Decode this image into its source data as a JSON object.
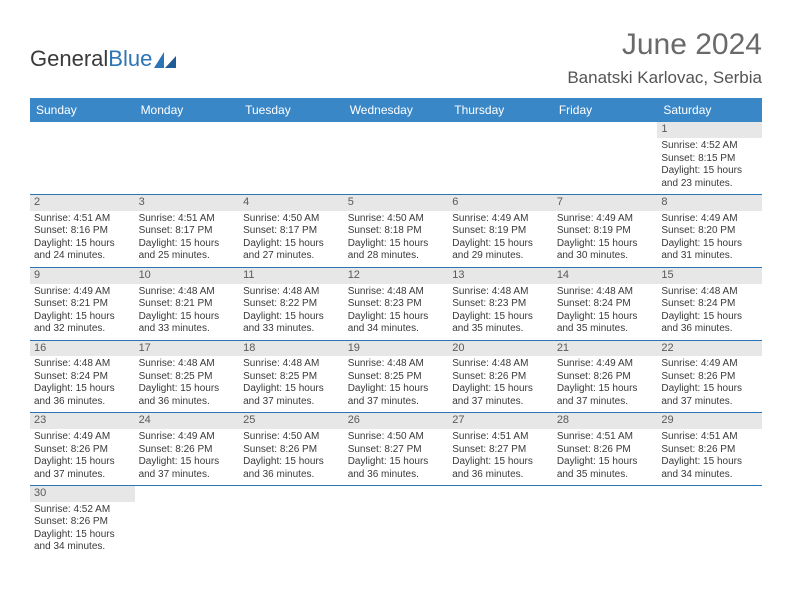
{
  "brand": {
    "part1": "General",
    "part2": "Blue"
  },
  "title": "June 2024",
  "location": "Banatski Karlovac, Serbia",
  "colors": {
    "header_bg": "#3a87c8",
    "header_fg": "#ffffff",
    "grid_line": "#2d74b5",
    "daynum_bg": "#e7e7e7",
    "text": "#3a3a3a",
    "title": "#6a6a6a"
  },
  "weekdays": [
    "Sunday",
    "Monday",
    "Tuesday",
    "Wednesday",
    "Thursday",
    "Friday",
    "Saturday"
  ],
  "weeks": [
    [
      null,
      null,
      null,
      null,
      null,
      null,
      {
        "n": "1",
        "sr": "Sunrise: 4:52 AM",
        "ss": "Sunset: 8:15 PM",
        "d1": "Daylight: 15 hours",
        "d2": "and 23 minutes."
      }
    ],
    [
      {
        "n": "2",
        "sr": "Sunrise: 4:51 AM",
        "ss": "Sunset: 8:16 PM",
        "d1": "Daylight: 15 hours",
        "d2": "and 24 minutes."
      },
      {
        "n": "3",
        "sr": "Sunrise: 4:51 AM",
        "ss": "Sunset: 8:17 PM",
        "d1": "Daylight: 15 hours",
        "d2": "and 25 minutes."
      },
      {
        "n": "4",
        "sr": "Sunrise: 4:50 AM",
        "ss": "Sunset: 8:17 PM",
        "d1": "Daylight: 15 hours",
        "d2": "and 27 minutes."
      },
      {
        "n": "5",
        "sr": "Sunrise: 4:50 AM",
        "ss": "Sunset: 8:18 PM",
        "d1": "Daylight: 15 hours",
        "d2": "and 28 minutes."
      },
      {
        "n": "6",
        "sr": "Sunrise: 4:49 AM",
        "ss": "Sunset: 8:19 PM",
        "d1": "Daylight: 15 hours",
        "d2": "and 29 minutes."
      },
      {
        "n": "7",
        "sr": "Sunrise: 4:49 AM",
        "ss": "Sunset: 8:19 PM",
        "d1": "Daylight: 15 hours",
        "d2": "and 30 minutes."
      },
      {
        "n": "8",
        "sr": "Sunrise: 4:49 AM",
        "ss": "Sunset: 8:20 PM",
        "d1": "Daylight: 15 hours",
        "d2": "and 31 minutes."
      }
    ],
    [
      {
        "n": "9",
        "sr": "Sunrise: 4:49 AM",
        "ss": "Sunset: 8:21 PM",
        "d1": "Daylight: 15 hours",
        "d2": "and 32 minutes."
      },
      {
        "n": "10",
        "sr": "Sunrise: 4:48 AM",
        "ss": "Sunset: 8:21 PM",
        "d1": "Daylight: 15 hours",
        "d2": "and 33 minutes."
      },
      {
        "n": "11",
        "sr": "Sunrise: 4:48 AM",
        "ss": "Sunset: 8:22 PM",
        "d1": "Daylight: 15 hours",
        "d2": "and 33 minutes."
      },
      {
        "n": "12",
        "sr": "Sunrise: 4:48 AM",
        "ss": "Sunset: 8:23 PM",
        "d1": "Daylight: 15 hours",
        "d2": "and 34 minutes."
      },
      {
        "n": "13",
        "sr": "Sunrise: 4:48 AM",
        "ss": "Sunset: 8:23 PM",
        "d1": "Daylight: 15 hours",
        "d2": "and 35 minutes."
      },
      {
        "n": "14",
        "sr": "Sunrise: 4:48 AM",
        "ss": "Sunset: 8:24 PM",
        "d1": "Daylight: 15 hours",
        "d2": "and 35 minutes."
      },
      {
        "n": "15",
        "sr": "Sunrise: 4:48 AM",
        "ss": "Sunset: 8:24 PM",
        "d1": "Daylight: 15 hours",
        "d2": "and 36 minutes."
      }
    ],
    [
      {
        "n": "16",
        "sr": "Sunrise: 4:48 AM",
        "ss": "Sunset: 8:24 PM",
        "d1": "Daylight: 15 hours",
        "d2": "and 36 minutes."
      },
      {
        "n": "17",
        "sr": "Sunrise: 4:48 AM",
        "ss": "Sunset: 8:25 PM",
        "d1": "Daylight: 15 hours",
        "d2": "and 36 minutes."
      },
      {
        "n": "18",
        "sr": "Sunrise: 4:48 AM",
        "ss": "Sunset: 8:25 PM",
        "d1": "Daylight: 15 hours",
        "d2": "and 37 minutes."
      },
      {
        "n": "19",
        "sr": "Sunrise: 4:48 AM",
        "ss": "Sunset: 8:25 PM",
        "d1": "Daylight: 15 hours",
        "d2": "and 37 minutes."
      },
      {
        "n": "20",
        "sr": "Sunrise: 4:48 AM",
        "ss": "Sunset: 8:26 PM",
        "d1": "Daylight: 15 hours",
        "d2": "and 37 minutes."
      },
      {
        "n": "21",
        "sr": "Sunrise: 4:49 AM",
        "ss": "Sunset: 8:26 PM",
        "d1": "Daylight: 15 hours",
        "d2": "and 37 minutes."
      },
      {
        "n": "22",
        "sr": "Sunrise: 4:49 AM",
        "ss": "Sunset: 8:26 PM",
        "d1": "Daylight: 15 hours",
        "d2": "and 37 minutes."
      }
    ],
    [
      {
        "n": "23",
        "sr": "Sunrise: 4:49 AM",
        "ss": "Sunset: 8:26 PM",
        "d1": "Daylight: 15 hours",
        "d2": "and 37 minutes."
      },
      {
        "n": "24",
        "sr": "Sunrise: 4:49 AM",
        "ss": "Sunset: 8:26 PM",
        "d1": "Daylight: 15 hours",
        "d2": "and 37 minutes."
      },
      {
        "n": "25",
        "sr": "Sunrise: 4:50 AM",
        "ss": "Sunset: 8:26 PM",
        "d1": "Daylight: 15 hours",
        "d2": "and 36 minutes."
      },
      {
        "n": "26",
        "sr": "Sunrise: 4:50 AM",
        "ss": "Sunset: 8:27 PM",
        "d1": "Daylight: 15 hours",
        "d2": "and 36 minutes."
      },
      {
        "n": "27",
        "sr": "Sunrise: 4:51 AM",
        "ss": "Sunset: 8:27 PM",
        "d1": "Daylight: 15 hours",
        "d2": "and 36 minutes."
      },
      {
        "n": "28",
        "sr": "Sunrise: 4:51 AM",
        "ss": "Sunset: 8:26 PM",
        "d1": "Daylight: 15 hours",
        "d2": "and 35 minutes."
      },
      {
        "n": "29",
        "sr": "Sunrise: 4:51 AM",
        "ss": "Sunset: 8:26 PM",
        "d1": "Daylight: 15 hours",
        "d2": "and 34 minutes."
      }
    ],
    [
      {
        "n": "30",
        "sr": "Sunrise: 4:52 AM",
        "ss": "Sunset: 8:26 PM",
        "d1": "Daylight: 15 hours",
        "d2": "and 34 minutes."
      },
      null,
      null,
      null,
      null,
      null,
      null
    ]
  ]
}
